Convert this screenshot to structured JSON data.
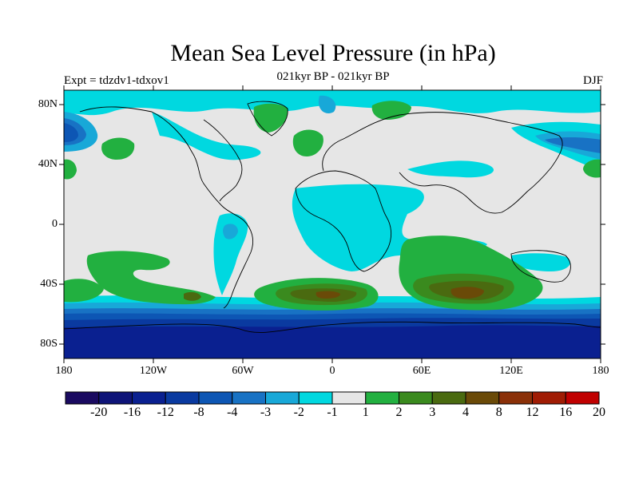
{
  "title": "Mean Sea Level Pressure (in hPa)",
  "subtitle": "021kyr BP - 021kyr BP",
  "left_label": "Expt = tdzdv1-tdxov1",
  "right_label": "DJF",
  "y_axis": {
    "ticks": [
      "80N",
      "40N",
      "0",
      "40S",
      "80S"
    ]
  },
  "x_axis": {
    "ticks": [
      "180",
      "120W",
      "60W",
      "0",
      "60E",
      "120E",
      "180"
    ]
  },
  "colorbar": {
    "labels": [
      "-20",
      "-16",
      "-12",
      "-8",
      "-4",
      "-3",
      "-2",
      "-1",
      "1",
      "2",
      "3",
      "4",
      "8",
      "12",
      "16",
      "20"
    ],
    "colors": [
      "#1a0a60",
      "#0e1478",
      "#0a2090",
      "#0a3aa0",
      "#0d56b4",
      "#1872c4",
      "#18a8d8",
      "#00d8e0",
      "#e6e6e6",
      "#22b040",
      "#3a8a1e",
      "#4a6a10",
      "#6a4a08",
      "#8a3008",
      "#a01c04",
      "#c00000"
    ]
  },
  "chart_data": {
    "type": "contour_map",
    "variable": "Mean Sea Level Pressure difference",
    "units": "hPa",
    "season": "DJF",
    "lon_range": [
      -180,
      180
    ],
    "lat_range": [
      -90,
      90
    ],
    "levels": [
      -20,
      -16,
      -12,
      -8,
      -4,
      -3,
      -2,
      -1,
      1,
      2,
      3,
      4,
      8,
      12,
      16,
      20
    ],
    "features": [
      {
        "region": "Antarctic belt 60S-90S",
        "value_range": [
          -20,
          -4
        ]
      },
      {
        "region": "North Pacific / NE Asia",
        "value_range": [
          -8,
          -2
        ]
      },
      {
        "region": "Southern Ocean 40S, South Atlantic and Indian Ocean",
        "value_range": [
          2,
          4
        ]
      },
      {
        "region": "Africa, Middle East, central Pacific",
        "value_range": [
          -2,
          -1
        ]
      }
    ]
  }
}
